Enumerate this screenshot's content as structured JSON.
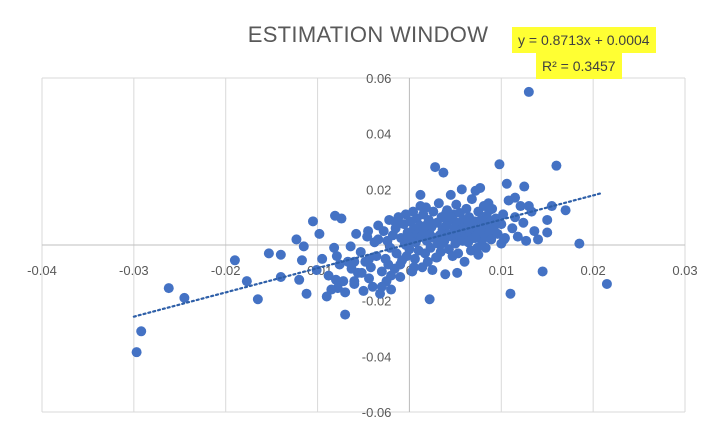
{
  "chart_data": {
    "type": "scatter",
    "title": "ESTIMATION WINDOW",
    "xlabel": "",
    "ylabel": "",
    "xlim": [
      -0.04,
      0.03
    ],
    "ylim": [
      -0.06,
      0.06
    ],
    "x_ticks": [
      "-0.04",
      "-0.03",
      "-0.02",
      "-0.01",
      "0",
      "0.01",
      "0.02",
      "0.03"
    ],
    "y_ticks": [
      "0.06",
      "0.04",
      "0.02",
      "0",
      "-0.02",
      "-0.04",
      "-0.06"
    ],
    "grid": "vertical",
    "legend": "none",
    "point_color": "#4472c4",
    "trendline": {
      "equation": "y = 0.8713x + 0.0004",
      "r_squared": "R² = 0.3457",
      "slope": 0.8713,
      "intercept": 0.0004,
      "x_range": [
        -0.03,
        0.021
      ],
      "color": "#2e5fa8",
      "style": "dotted"
    },
    "x": [
      -0.0297,
      -0.0292,
      -0.0262,
      -0.0245,
      -0.019,
      -0.0177,
      -0.0165,
      -0.0153,
      -0.014,
      -0.0123,
      -0.012,
      -0.0117,
      -0.0112,
      -0.0101,
      -0.0095,
      -0.0088,
      -0.0085,
      -0.0082,
      -0.0081,
      -0.0079,
      -0.0078,
      -0.0076,
      -0.0074,
      -0.0072,
      -0.007,
      -0.0067,
      -0.0064,
      -0.0063,
      -0.006,
      -0.0058,
      -0.0056,
      -0.0053,
      -0.005,
      -0.0048,
      -0.0046,
      -0.0044,
      -0.0042,
      -0.004,
      -0.0038,
      -0.0036,
      -0.0034,
      -0.0032,
      -0.003,
      -0.0028,
      -0.0026,
      -0.0025,
      -0.0024,
      -0.0023,
      -0.0022,
      -0.0021,
      -0.002,
      -0.0018,
      -0.0016,
      -0.0015,
      -0.0014,
      -0.0012,
      -0.001,
      -0.0009,
      -0.0008,
      -0.0006,
      -0.0005,
      -0.0004,
      -0.0003,
      -0.0002,
      -0.0001,
      0.0,
      0.0001,
      0.0002,
      0.0003,
      0.0004,
      0.0005,
      0.0006,
      0.0007,
      0.0008,
      0.0009,
      0.001,
      0.0011,
      0.0012,
      0.0013,
      0.0014,
      0.0015,
      0.0016,
      0.0017,
      0.0018,
      0.0019,
      0.002,
      0.0021,
      0.0022,
      0.0023,
      0.0024,
      0.0025,
      0.0026,
      0.0027,
      0.0028,
      0.0029,
      0.003,
      0.0031,
      0.0032,
      0.0033,
      0.0034,
      0.0035,
      0.0036,
      0.0037,
      0.0038,
      0.0039,
      0.004,
      0.0041,
      0.0042,
      0.0043,
      0.0044,
      0.0045,
      0.0046,
      0.0047,
      0.0048,
      0.0049,
      0.005,
      0.0051,
      0.0052,
      0.0053,
      0.0054,
      0.0055,
      0.0056,
      0.0057,
      0.0058,
      0.0059,
      0.006,
      0.0061,
      0.0062,
      0.0063,
      0.0064,
      0.0065,
      0.0066,
      0.0067,
      0.0068,
      0.0069,
      0.007,
      0.0071,
      0.0072,
      0.0073,
      0.0074,
      0.0075,
      0.0076,
      0.0077,
      0.0078,
      0.0079,
      0.008,
      0.0081,
      0.0082,
      0.0083,
      0.0084,
      0.0085,
      0.0086,
      0.0087,
      0.0088,
      0.0089,
      0.009,
      0.0092,
      0.0094,
      0.0096,
      0.0098,
      0.01,
      0.0102,
      0.0104,
      0.0106,
      0.0108,
      0.011,
      0.0112,
      0.0115,
      0.0118,
      0.0121,
      0.0124,
      0.0127,
      0.013,
      0.0133,
      0.0136,
      0.014,
      0.0145,
      0.015,
      0.0155,
      0.016,
      0.017,
      0.0185,
      0.0215,
      -0.0105,
      -0.0098,
      -0.009,
      -0.006,
      -0.0052,
      -0.0044,
      -0.0034,
      -0.002,
      -0.001,
      -0.0004,
      0.0012,
      0.0022,
      0.0035,
      0.004,
      0.0052,
      0.0064,
      0.0075,
      0.0087,
      0.0094,
      0.0103,
      0.0125,
      0.015,
      -0.014,
      -0.0115,
      -0.008,
      -0.007,
      -0.006,
      -0.0045,
      -0.003,
      -0.0015,
      0.0005,
      0.0018,
      0.003,
      0.0045,
      0.0058,
      0.0072,
      0.0085,
      0.01,
      0.0115,
      0.013
    ],
    "y": [
      -0.0385,
      -0.031,
      -0.0155,
      -0.019,
      -0.0055,
      -0.013,
      -0.0195,
      -0.003,
      -0.0115,
      0.002,
      -0.0125,
      -0.0055,
      -0.0175,
      -0.009,
      -0.005,
      -0.011,
      -0.016,
      -0.001,
      0.0105,
      -0.004,
      -0.0155,
      -0.007,
      0.0095,
      -0.013,
      -0.017,
      -0.006,
      -0.0005,
      -0.0085,
      -0.014,
      0.004,
      -0.01,
      -0.0025,
      -0.0165,
      -0.006,
      0.003,
      -0.012,
      -0.008,
      -0.015,
      0.001,
      -0.004,
      0.007,
      -0.0175,
      -0.0095,
      0.005,
      -0.005,
      -0.013,
      0.0015,
      -0.007,
      0.009,
      -0.001,
      -0.016,
      0.0035,
      -0.0085,
      0.006,
      -0.003,
      0.01,
      -0.0115,
      0.0025,
      -0.0055,
      0.0075,
      0.0005,
      0.011,
      -0.004,
      0.0045,
      0.002,
      -0.0015,
      0.0085,
      0.003,
      -0.0095,
      0.012,
      0.006,
      -0.005,
      0.001,
      0.0095,
      0.004,
      -0.002,
      0.007,
      0.018,
      0.003,
      -0.008,
      0.011,
      0.005,
      -0.003,
      0.0135,
      0.0015,
      -0.006,
      0.009,
      0.004,
      -0.001,
      0.0065,
      -0.009,
      0.012,
      0.0025,
      0.028,
      -0.0045,
      0.008,
      0.0005,
      0.015,
      0.0035,
      -0.0025,
      0.01,
      0.0055,
      0.026,
      0.0015,
      -0.0105,
      0.007,
      0.0125,
      0.004,
      -0.0015,
      0.009,
      0.018,
      0.003,
      -0.004,
      0.011,
      0.006,
      0.0005,
      0.0145,
      0.008,
      -0.003,
      0.0035,
      0.0115,
      0.0055,
      0.02,
      0.0015,
      0.009,
      -0.006,
      0.004,
      0.013,
      0.007,
      0.001,
      0.01,
      0.0045,
      -0.002,
      0.0165,
      0.006,
      0.0025,
      0.0085,
      0.0195,
      0.0035,
      -0.001,
      0.012,
      0.005,
      0.0205,
      0.009,
      0.0015,
      0.006,
      0.014,
      0.003,
      -0.001,
      0.0105,
      0.007,
      0.015,
      0.0045,
      0.0085,
      0.002,
      0.013,
      0.0055,
      0.0095,
      0.004,
      0.029,
      0.0075,
      0.011,
      0.0025,
      0.022,
      0.016,
      -0.0175,
      0.006,
      0.01,
      0.003,
      0.014,
      0.008,
      0.0015,
      0.055,
      0.012,
      0.005,
      0.002,
      -0.0095,
      0.009,
      0.014,
      0.0285,
      0.0125,
      0.0005,
      -0.014,
      0.0085,
      0.004,
      -0.0185,
      -0.013,
      -0.01,
      -0.005,
      0.002,
      -0.011,
      -0.007,
      0.0,
      0.014,
      -0.0195,
      0.0005,
      0.0115,
      -0.01,
      0.0075,
      -0.0035,
      0.0125,
      0.0085,
      0.002,
      0.021,
      0.0045,
      -0.0035,
      -0.0005,
      -0.0125,
      -0.025,
      -0.006,
      0.005,
      -0.015,
      0.008,
      -0.008,
      0.007,
      -0.0045,
      0.01,
      0.006,
      0.0025,
      0.0075,
      0.0005,
      0.017,
      0.014
    ]
  }
}
